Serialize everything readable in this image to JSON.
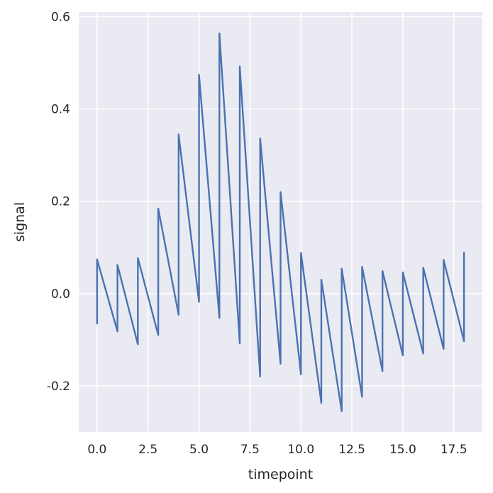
{
  "chart_data": {
    "type": "line",
    "title": "",
    "xlabel": "timepoint",
    "ylabel": "signal",
    "xlim": [
      -0.9,
      18.9
    ],
    "ylim": [
      -0.3,
      0.61
    ],
    "xticks": [
      0.0,
      2.5,
      5.0,
      7.5,
      10.0,
      12.5,
      15.0,
      17.5
    ],
    "xtick_labels": [
      "0.0",
      "2.5",
      "5.0",
      "7.5",
      "10.0",
      "12.5",
      "15.0",
      "17.5"
    ],
    "yticks": [
      -0.2,
      0.0,
      0.2,
      0.4,
      0.6
    ],
    "ytick_labels": [
      "-0.2",
      "0.0",
      "0.2",
      "0.4",
      "0.6"
    ],
    "grid": true,
    "background": "#EAEAF2",
    "grid_color": "#FFFFFF",
    "line_color": "#4C72B0",
    "series": [
      {
        "x": [
          0,
          0,
          1,
          1,
          2,
          2,
          3,
          3,
          4,
          4,
          5,
          5,
          6,
          6,
          7,
          7,
          8,
          8,
          9,
          9,
          10,
          10,
          11,
          11,
          12,
          12,
          13,
          13,
          14,
          14,
          15,
          15,
          16,
          16,
          17,
          17,
          18,
          18
        ],
        "y": [
          -0.065,
          0.074,
          -0.082,
          0.062,
          -0.11,
          0.077,
          -0.09,
          0.184,
          -0.046,
          0.345,
          -0.018,
          0.474,
          -0.053,
          0.564,
          -0.108,
          0.492,
          -0.18,
          0.336,
          -0.152,
          0.22,
          -0.175,
          0.088,
          -0.237,
          0.03,
          -0.255,
          0.054,
          -0.224,
          0.058,
          -0.168,
          0.049,
          -0.134,
          0.046,
          -0.13,
          0.056,
          -0.12,
          0.073,
          -0.103,
          0.089
        ]
      }
    ]
  }
}
